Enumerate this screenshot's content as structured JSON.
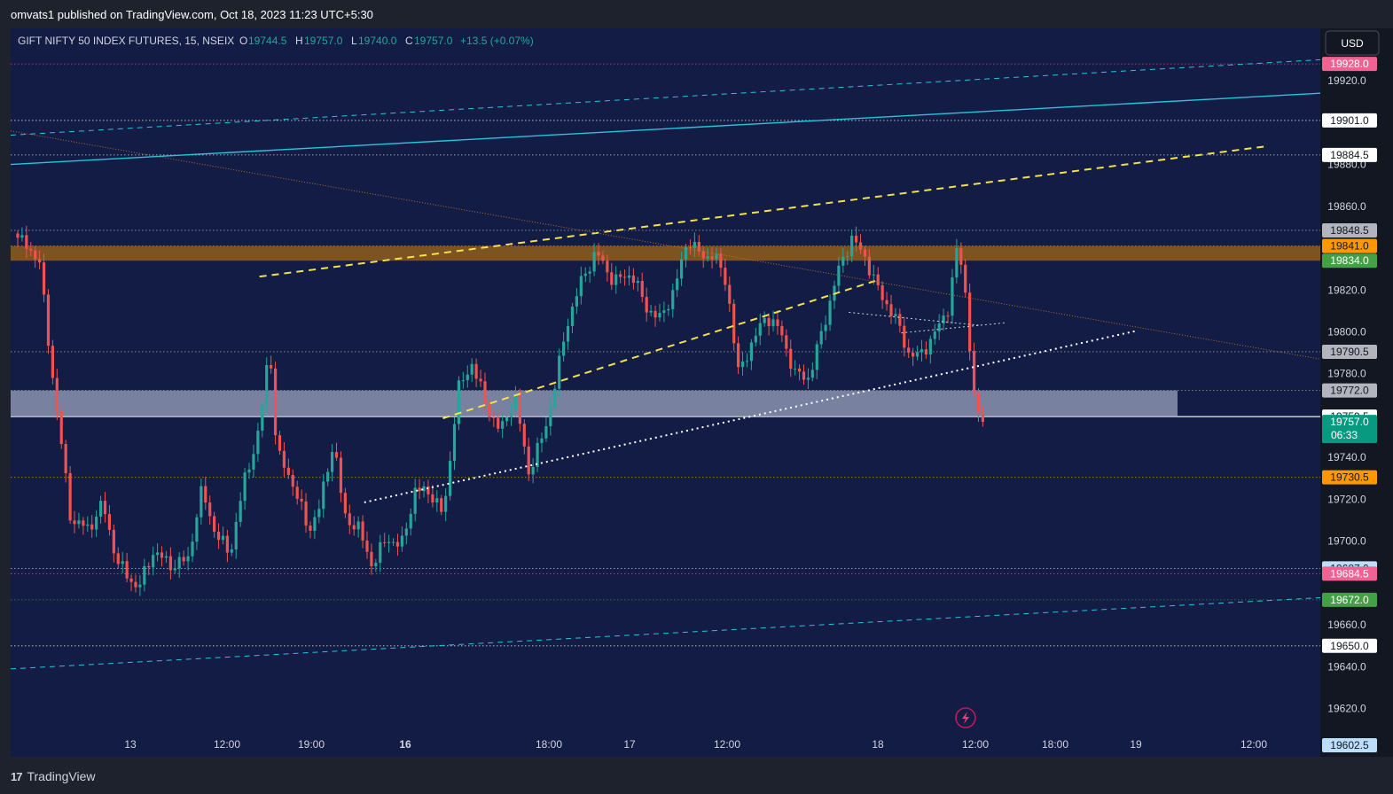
{
  "publish_line": "omvats1 published on TradingView.com, Oct 18, 2023 11:23 UTC+5:30",
  "header": {
    "symbol": "GIFT NIFTY 50 INDEX FUTURES, 15, NSEIX",
    "o_label": "O",
    "o_value": "19744.5",
    "h_label": "H",
    "h_value": "19757.0",
    "l_label": "L",
    "l_value": "19740.0",
    "c_label": "C",
    "c_value": "19757.0",
    "change": "+13.5 (+0.07%)"
  },
  "currency_button": "USD",
  "branding": {
    "mark": "17",
    "name": "TradingView"
  },
  "colors": {
    "background": "#131c44",
    "up": "#26a69a",
    "down": "#ef5350",
    "resistance_zone": "#8a5a1e",
    "support_zone": "#8b93b0",
    "yellow_trend": "#f5e14a",
    "cyan_channel": "#26c6da",
    "brown_trend": "#c07a2c"
  },
  "chart_data": {
    "type": "candlestick",
    "symbol": "GIFT NIFTY 50 INDEX FUTURES",
    "interval": "15",
    "exchange": "NSEIX",
    "y_axis": {
      "position": "right",
      "ylim": [
        19597,
        19945
      ],
      "tick_labels": [
        "19920.0",
        "19880.0",
        "19860.0",
        "19820.0",
        "19800.0",
        "19780.0",
        "19740.0",
        "19720.0",
        "19700.0",
        "19660.0",
        "19640.0",
        "19620.0"
      ]
    },
    "x_axis": {
      "tick_labels": [
        "13",
        "12:00",
        "19:00",
        "16",
        "18:00",
        "17",
        "12:00",
        "18",
        "12:00",
        "18:00",
        "19",
        "12:00"
      ],
      "bold_labels": [
        "16"
      ]
    },
    "price_levels": [
      {
        "value": 19928.0,
        "label": "19928.0",
        "color": "#f06292",
        "line": "dotted"
      },
      {
        "value": 19901.0,
        "label": "19901.0",
        "color": "#ffffff",
        "line": "dotted"
      },
      {
        "value": 19884.5,
        "label": "19884.5",
        "color": "#ffffff",
        "line": "dotted"
      },
      {
        "value": 19848.5,
        "label": "19848.5",
        "color": "#b2b5be",
        "line": "dotted"
      },
      {
        "value": 19841.0,
        "label": "19841.0",
        "color": "#ff9800",
        "line": "dotted"
      },
      {
        "value": 19834.0,
        "label": "19834.0",
        "color": "#43a047",
        "line": "none"
      },
      {
        "value": 19790.5,
        "label": "19790.5",
        "color": "#b2b5be",
        "line": "dotted"
      },
      {
        "value": 19772.0,
        "label": "19772.0",
        "color": "#b2b5be",
        "line": "dotted"
      },
      {
        "value": 19759.5,
        "label": "19759.5",
        "color": "#ffffff",
        "line": "solid"
      },
      {
        "value": 19730.5,
        "label": "19730.5",
        "color": "#ff9800",
        "line": "dotted"
      },
      {
        "value": 19687.0,
        "label": "19687.0",
        "color": "#bbdefb",
        "line": "dotted"
      },
      {
        "value": 19684.5,
        "label": "19684.5",
        "color": "#f06292",
        "line": "dotted"
      },
      {
        "value": 19672.0,
        "label": "19672.0",
        "color": "#43a047",
        "line": "dotted"
      },
      {
        "value": 19650.0,
        "label": "19650.0",
        "color": "#ffffff",
        "line": "dotted"
      },
      {
        "value": 19602.5,
        "label": "19602.5",
        "color": "#bbdefb",
        "line": "none"
      }
    ],
    "current_price": {
      "value": 19757.0,
      "label": "19757.0",
      "countdown": "06:33",
      "color": "#089981"
    },
    "zones": [
      {
        "name": "resistance",
        "from": 19834.0,
        "to": 19841.0,
        "color": "#8a5a1e"
      },
      {
        "name": "support",
        "from": 19759.5,
        "to": 19772.0,
        "color": "#8b93b0"
      }
    ],
    "candles": {
      "count": 222,
      "segments": [
        [
          0,
          19845
        ],
        [
          6,
          19835
        ],
        [
          9,
          19790
        ],
        [
          15,
          19710
        ],
        [
          20,
          19706
        ],
        [
          24,
          19718
        ],
        [
          28,
          19690
        ],
        [
          34,
          19677
        ],
        [
          38,
          19695
        ],
        [
          44,
          19688
        ],
        [
          48,
          19692
        ],
        [
          52,
          19725
        ],
        [
          56,
          19702
        ],
        [
          60,
          19695
        ],
        [
          64,
          19730
        ],
        [
          68,
          19752
        ],
        [
          71,
          19795
        ],
        [
          73,
          19742
        ],
        [
          77,
          19730
        ],
        [
          82,
          19705
        ],
        [
          85,
          19716
        ],
        [
          89,
          19748
        ],
        [
          92,
          19712
        ],
        [
          96,
          19706
        ],
        [
          100,
          19688
        ],
        [
          104,
          19702
        ],
        [
          108,
          19697
        ],
        [
          112,
          19724
        ],
        [
          116,
          19724
        ],
        [
          120,
          19712
        ],
        [
          124,
          19772
        ],
        [
          128,
          19785
        ],
        [
          132,
          19765
        ],
        [
          136,
          19752
        ],
        [
          140,
          19770
        ],
        [
          144,
          19733
        ],
        [
          148,
          19750
        ],
        [
          150,
          19763
        ],
        [
          155,
          19805
        ],
        [
          159,
          19825
        ],
        [
          163,
          19838
        ],
        [
          168,
          19824
        ],
        [
          173,
          19828
        ],
        [
          177,
          19812
        ],
        [
          181,
          19806
        ],
        [
          185,
          19820
        ],
        [
          189,
          19845
        ],
        [
          193,
          19835
        ],
        [
          196,
          19838
        ],
        [
          200,
          19822
        ],
        [
          203,
          19780
        ],
        [
          207,
          19795
        ],
        [
          211,
          19808
        ],
        [
          215,
          19800
        ],
        [
          219,
          19780
        ],
        [
          223,
          19778
        ],
        [
          227,
          19802
        ],
        [
          231,
          19828
        ],
        [
          235,
          19845
        ],
        [
          239,
          19835
        ],
        [
          243,
          19818
        ],
        [
          247,
          19808
        ],
        [
          251,
          19790
        ],
        [
          254,
          19788
        ],
        [
          258,
          19798
        ],
        [
          262,
          19810
        ],
        [
          265,
          19842
        ],
        [
          267,
          19820
        ],
        [
          270,
          19760
        ],
        [
          272,
          19757
        ]
      ],
      "wave_amplitude": 4,
      "wick_extension": 3
    },
    "drawings": {
      "yellow_dashed": [
        {
          "x": [
            0.0,
            1.0
          ],
          "y": [
            19811,
            19892
          ]
        },
        {
          "x": [
            0.0,
            1.0
          ],
          "y": [
            19693,
            19892
          ]
        }
      ],
      "white_dotted": [
        {
          "x": [
            0.0,
            1.0
          ],
          "y": [
            19681,
            19820
          ]
        },
        {
          "x": [
            0.0,
            1.0
          ],
          "y": [
            19758,
            19819
          ]
        },
        {
          "x": [
            0.0,
            1.0
          ],
          "y": [
            19849,
            19787
          ]
        }
      ],
      "cyan_solid": {
        "x": [
          0.0,
          1.0
        ],
        "y": [
          19880,
          19914
        ]
      },
      "cyan_dashed": [
        {
          "x": [
            0.0,
            1.0
          ],
          "y": [
            19894,
            19930
          ]
        },
        {
          "x": [
            0.0,
            1.0
          ],
          "y": [
            19639,
            19673
          ]
        }
      ],
      "brown_dotted": {
        "x": [
          0.0,
          1.0
        ],
        "y": [
          19896,
          19787
        ]
      }
    }
  }
}
